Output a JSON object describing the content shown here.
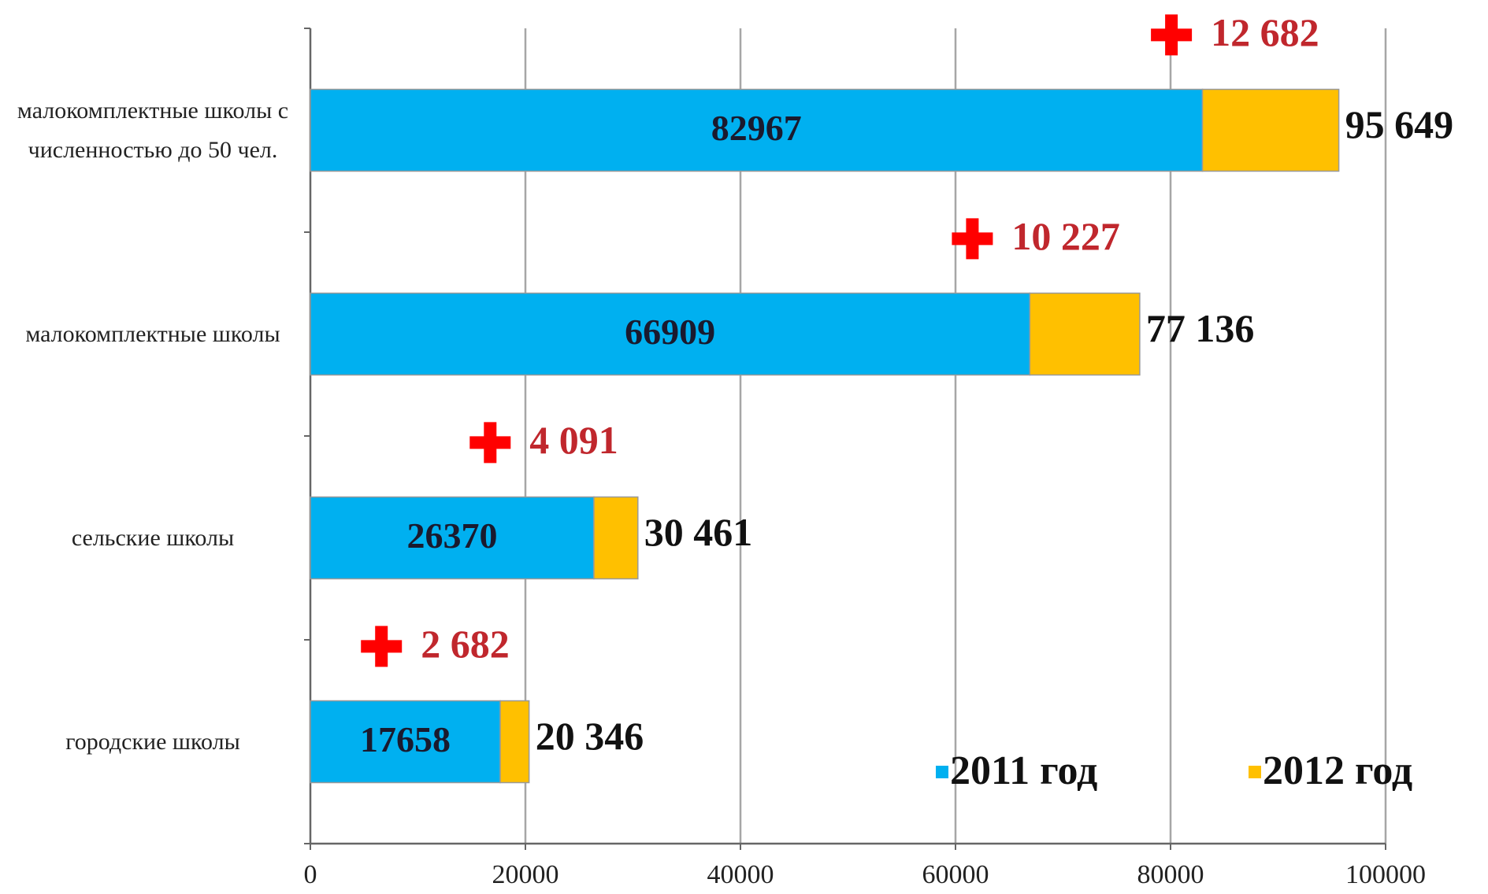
{
  "chart_data": {
    "type": "stacked_bar_horizontal",
    "categories": [
      "малокомплектные школы с численностью до 50 чел.",
      "малокомплектные школы",
      "сельские школы",
      "городские школы"
    ],
    "series": [
      {
        "name": "2011 год",
        "color": "#00b0f0",
        "values": [
          82967,
          66909,
          26370,
          17658
        ]
      },
      {
        "name": "2012 год",
        "color": "#ffc000",
        "values": [
          12682,
          10227,
          4091,
          2682
        ],
        "value_labels": [
          "12 682",
          "10 227",
          "4 091",
          "2 682"
        ]
      }
    ],
    "totals": [
      95649,
      77136,
      30461,
      20346
    ],
    "total_labels": [
      "95 649",
      "77 136",
      "30 461",
      "20 346"
    ],
    "xlim": [
      0,
      100000
    ],
    "xticks": [
      0,
      20000,
      40000,
      60000,
      80000,
      100000
    ],
    "grid": true,
    "legend": "bottom-right"
  }
}
